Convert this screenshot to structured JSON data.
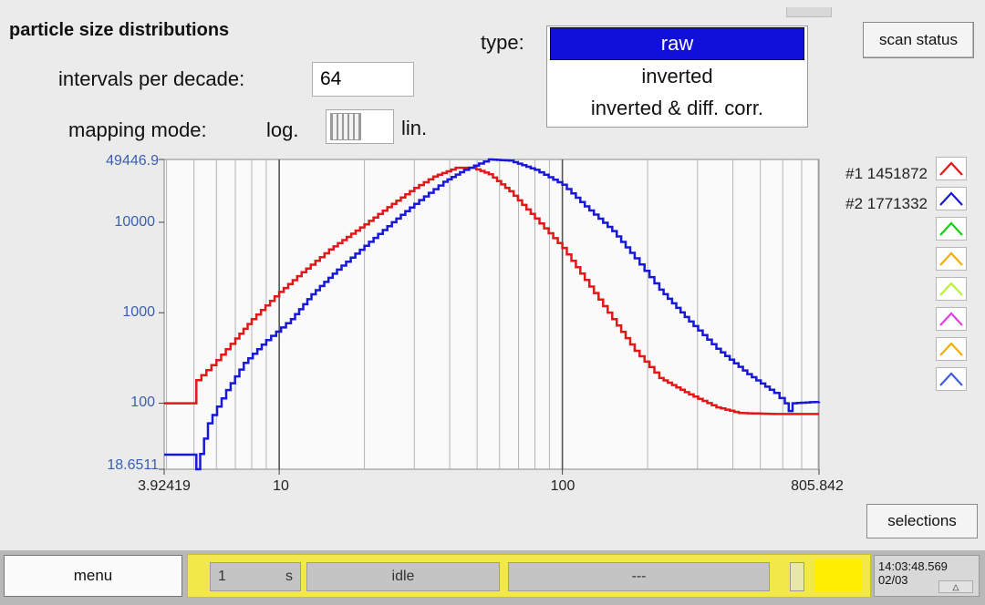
{
  "header": {
    "title": "particle size distributions",
    "scan_status_label": "scan status"
  },
  "controls": {
    "intervals_label": "intervals per decade:",
    "intervals_value": "64",
    "mapping_label": "mapping mode:",
    "log_label": "log.",
    "lin_label": "lin.",
    "mapping_mode": "log."
  },
  "type_selector": {
    "label": "type:",
    "options": [
      "raw",
      "inverted",
      "inverted & diff. corr."
    ],
    "selected": "raw"
  },
  "chart_data": {
    "type": "line",
    "x_scale": "log",
    "y_scale": "log",
    "xlim": [
      3.92419,
      805.842
    ],
    "ylim": [
      18.6511,
      49446.9
    ],
    "x_tick_labels": [
      "3.92419",
      "10",
      "100",
      "805.842"
    ],
    "y_tick_labels": [
      "49446.9",
      "10000",
      "1000",
      "100",
      "18.6511"
    ],
    "grid": true,
    "legend_placement": "right",
    "series": [
      {
        "name": "#1 1451872",
        "color": "#e01818",
        "points": [
          [
            3.92419,
            100
          ],
          [
            5,
            100
          ],
          [
            5.1,
            180
          ],
          [
            6,
            300
          ],
          [
            7,
            520
          ],
          [
            8,
            850
          ],
          [
            10,
            1700
          ],
          [
            12,
            2800
          ],
          [
            15,
            5000
          ],
          [
            20,
            9500
          ],
          [
            25,
            16000
          ],
          [
            30,
            24000
          ],
          [
            35,
            32000
          ],
          [
            42,
            40000
          ],
          [
            48,
            40000
          ],
          [
            55,
            34000
          ],
          [
            65,
            22000
          ],
          [
            80,
            11000
          ],
          [
            100,
            5200
          ],
          [
            120,
            2300
          ],
          [
            150,
            850
          ],
          [
            180,
            380
          ],
          [
            220,
            190
          ],
          [
            280,
            125
          ],
          [
            350,
            90
          ],
          [
            420,
            78
          ],
          [
            560,
            76
          ],
          [
            805.842,
            76
          ]
        ]
      },
      {
        "name": "#2 1771332",
        "color": "#1818d8",
        "points": [
          [
            3.92419,
            27
          ],
          [
            5,
            27
          ],
          [
            5.1,
            18.6511
          ],
          [
            5.6,
            60
          ],
          [
            6.5,
            140
          ],
          [
            7.5,
            280
          ],
          [
            9,
            500
          ],
          [
            11,
            850
          ],
          [
            13,
            1600
          ],
          [
            16,
            3000
          ],
          [
            20,
            5500
          ],
          [
            25,
            10000
          ],
          [
            30,
            16000
          ],
          [
            38,
            28000
          ],
          [
            45,
            38000
          ],
          [
            55,
            49446.9
          ],
          [
            65,
            48000
          ],
          [
            80,
            38000
          ],
          [
            100,
            26000
          ],
          [
            120,
            15000
          ],
          [
            150,
            8000
          ],
          [
            180,
            4000
          ],
          [
            220,
            1800
          ],
          [
            280,
            800
          ],
          [
            350,
            400
          ],
          [
            450,
            210
          ],
          [
            560,
            130
          ],
          [
            610,
            100
          ],
          [
            630,
            82
          ],
          [
            650,
            100
          ],
          [
            805.842,
            104
          ]
        ]
      }
    ]
  },
  "legend": {
    "entries": [
      {
        "label": "#1 1451872",
        "color": "#e01818"
      },
      {
        "label": "#2 1771332",
        "color": "#1818d8"
      }
    ],
    "slot_colors": [
      "#e01818",
      "#1818d8",
      "#10d010",
      "#f0b000",
      "#b8f040",
      "#e040e0",
      "#f0b000",
      "#4060d8"
    ]
  },
  "buttons": {
    "selections": "selections",
    "menu": "menu"
  },
  "status": {
    "interval_value": "1",
    "interval_unit": "s",
    "state": "idle",
    "info": "---",
    "time": "14:03:48.569",
    "date": "02/03"
  }
}
